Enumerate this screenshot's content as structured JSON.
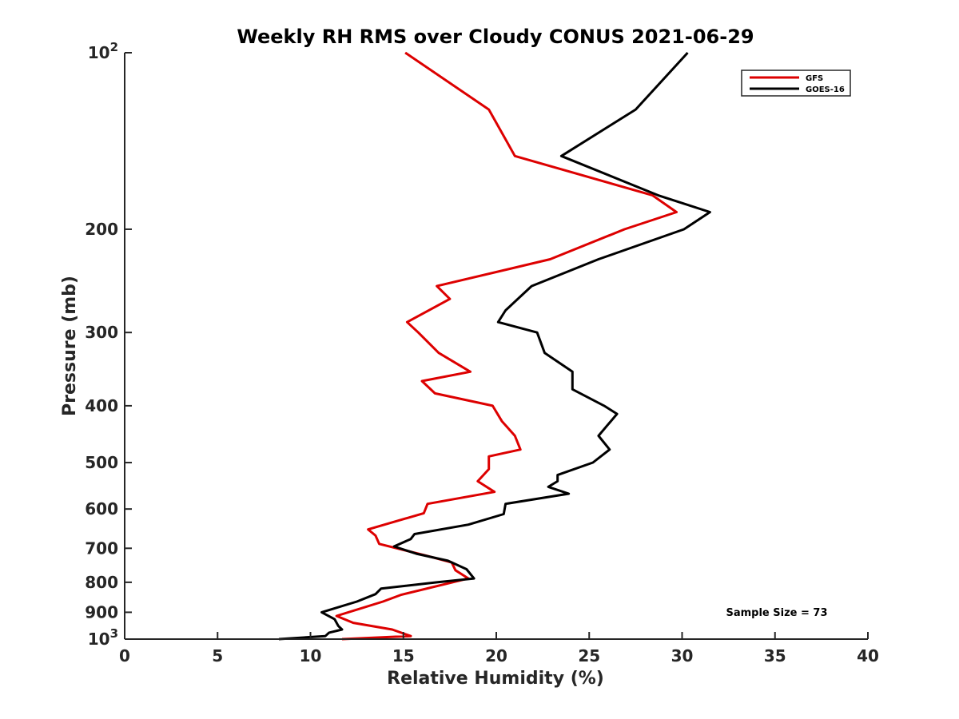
{
  "chart_data": {
    "type": "line",
    "title": "Weekly RH RMS over Cloudy CONUS 2021-06-29",
    "xlabel": "Relative Humidity (%)",
    "ylabel": "Pressure (mb)",
    "xlim": [
      0,
      40
    ],
    "ylim": [
      100,
      1000
    ],
    "yscale": "log",
    "y_reversed": true,
    "grid": false,
    "legend_position": "top-right",
    "x_ticks": [
      "0",
      "5",
      "10",
      "15",
      "20",
      "25",
      "30",
      "35",
      "40"
    ],
    "y_ticks": [
      {
        "value": 100,
        "base": "10",
        "exp": "2"
      },
      {
        "value": 200,
        "label": "200"
      },
      {
        "value": 300,
        "label": "300"
      },
      {
        "value": 400,
        "label": "400"
      },
      {
        "value": 500,
        "label": "500"
      },
      {
        "value": 600,
        "label": "600"
      },
      {
        "value": 700,
        "label": "700"
      },
      {
        "value": 800,
        "label": "800"
      },
      {
        "value": 900,
        "label": "900"
      },
      {
        "value": 1000,
        "base": "10",
        "exp": "3"
      }
    ],
    "annotation": "Sample Size = 73",
    "series": [
      {
        "name": "GFS",
        "color": "#dd0000",
        "points": [
          [
            15.1,
            100
          ],
          [
            19.6,
            125
          ],
          [
            21.0,
            150
          ],
          [
            28.4,
            175
          ],
          [
            29.7,
            187
          ],
          [
            26.9,
            200
          ],
          [
            22.9,
            225
          ],
          [
            16.8,
            250
          ],
          [
            17.5,
            263
          ],
          [
            15.2,
            288
          ],
          [
            15.8,
            300
          ],
          [
            16.9,
            325
          ],
          [
            18.6,
            350
          ],
          [
            16.0,
            363
          ],
          [
            16.7,
            381
          ],
          [
            19.8,
            400
          ],
          [
            20.3,
            425
          ],
          [
            21.0,
            450
          ],
          [
            21.3,
            475
          ],
          [
            19.6,
            488
          ],
          [
            19.6,
            513
          ],
          [
            19.0,
            538
          ],
          [
            19.9,
            561
          ],
          [
            16.3,
            588
          ],
          [
            16.1,
            610
          ],
          [
            13.1,
            650
          ],
          [
            13.5,
            666
          ],
          [
            13.7,
            688
          ],
          [
            16.2,
            720
          ],
          [
            17.6,
            740
          ],
          [
            17.8,
            763
          ],
          [
            18.5,
            788
          ],
          [
            14.9,
            840
          ],
          [
            13.9,
            863
          ],
          [
            11.4,
            913
          ],
          [
            12.3,
            938
          ],
          [
            14.4,
            963
          ],
          [
            15.4,
            988
          ],
          [
            11.7,
            1000
          ]
        ]
      },
      {
        "name": "GOES-16",
        "color": "#000000",
        "points": [
          [
            30.3,
            100
          ],
          [
            27.5,
            125
          ],
          [
            23.5,
            150
          ],
          [
            28.7,
            175
          ],
          [
            31.5,
            187
          ],
          [
            30.1,
            200
          ],
          [
            25.5,
            225
          ],
          [
            21.9,
            250
          ],
          [
            20.5,
            275
          ],
          [
            20.1,
            288
          ],
          [
            22.2,
            300
          ],
          [
            22.6,
            325
          ],
          [
            24.1,
            350
          ],
          [
            24.1,
            375
          ],
          [
            25.8,
            400
          ],
          [
            26.5,
            413
          ],
          [
            25.5,
            450
          ],
          [
            26.1,
            475
          ],
          [
            25.2,
            500
          ],
          [
            23.3,
            525
          ],
          [
            23.3,
            538
          ],
          [
            22.8,
            550
          ],
          [
            23.9,
            565
          ],
          [
            20.5,
            588
          ],
          [
            20.4,
            612
          ],
          [
            18.5,
            638
          ],
          [
            15.6,
            662
          ],
          [
            15.4,
            675
          ],
          [
            14.5,
            695
          ],
          [
            15.7,
            715
          ],
          [
            17.4,
            735
          ],
          [
            18.4,
            760
          ],
          [
            18.8,
            788
          ],
          [
            16.8,
            800
          ],
          [
            13.8,
            820
          ],
          [
            13.5,
            838
          ],
          [
            12.5,
            863
          ],
          [
            10.6,
            900
          ],
          [
            11.3,
            925
          ],
          [
            11.5,
            950
          ],
          [
            11.7,
            963
          ],
          [
            11.0,
            975
          ],
          [
            10.8,
            988
          ],
          [
            8.3,
            1000
          ]
        ]
      }
    ]
  }
}
